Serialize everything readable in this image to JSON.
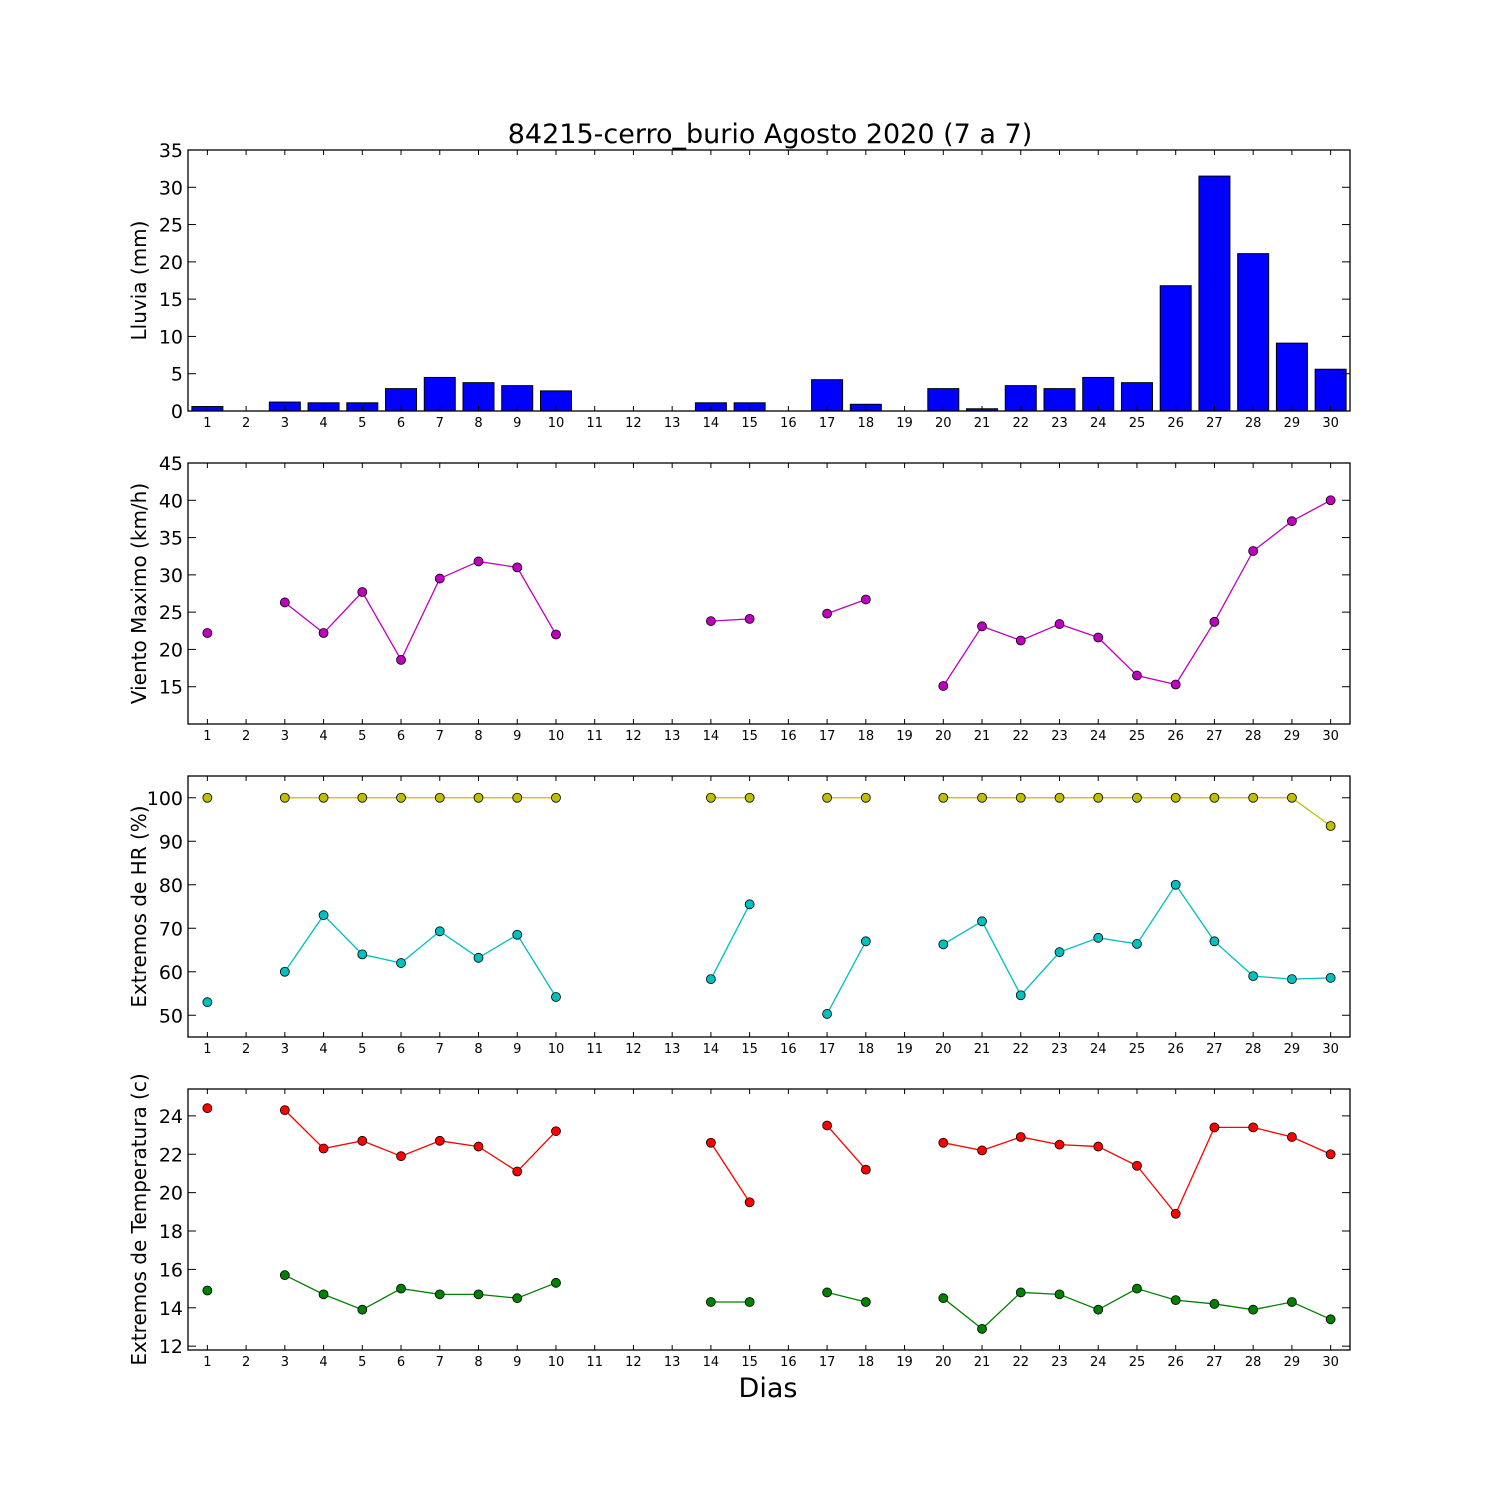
{
  "figure": {
    "title": "84215-cerro_burio Agosto 2020  (7 a 7)",
    "xlabel": "Dias"
  },
  "colors": {
    "rain": "#0000ff",
    "wind": "#bf00bf",
    "hr_max": "#bfbf00",
    "hr_min": "#00bfbf",
    "temp_max": "#ff0000",
    "temp_min": "#008000"
  },
  "chart_data": [
    {
      "type": "bar",
      "ylabel": "Lluvia (mm)",
      "x": [
        1,
        2,
        3,
        4,
        5,
        6,
        7,
        8,
        9,
        10,
        11,
        12,
        13,
        14,
        15,
        16,
        17,
        18,
        19,
        20,
        21,
        22,
        23,
        24,
        25,
        26,
        27,
        28,
        29,
        30
      ],
      "xlim": [
        0.5,
        30.5
      ],
      "ylim": [
        0,
        35
      ],
      "yticks": [
        0,
        5,
        10,
        15,
        20,
        25,
        30,
        35
      ],
      "series": [
        {
          "values": [
            0.6,
            0,
            1.2,
            1.1,
            1.1,
            3.0,
            4.5,
            3.8,
            3.4,
            2.7,
            0,
            0,
            0,
            1.1,
            1.1,
            0,
            4.2,
            0.9,
            0,
            3.0,
            0.3,
            3.4,
            3.0,
            4.5,
            3.8,
            16.8,
            31.5,
            21.1,
            9.1,
            5.6
          ]
        }
      ]
    },
    {
      "type": "line",
      "ylabel": "Viento Maximo (km/h)",
      "x": [
        1,
        2,
        3,
        4,
        5,
        6,
        7,
        8,
        9,
        10,
        11,
        12,
        13,
        14,
        15,
        16,
        17,
        18,
        19,
        20,
        21,
        22,
        23,
        24,
        25,
        26,
        27,
        28,
        29,
        30
      ],
      "xlim": [
        0.5,
        30.5
      ],
      "ylim": [
        10,
        45
      ],
      "yticks": [
        15,
        20,
        25,
        30,
        35,
        40,
        45
      ],
      "series": [
        {
          "values": [
            22.2,
            null,
            26.3,
            22.2,
            27.7,
            18.6,
            29.5,
            31.8,
            31.0,
            22.0,
            null,
            null,
            null,
            23.8,
            24.1,
            null,
            24.8,
            26.7,
            null,
            15.1,
            23.1,
            21.2,
            23.4,
            21.6,
            16.5,
            15.3,
            23.7,
            33.2,
            37.2,
            40.0
          ]
        }
      ]
    },
    {
      "type": "line",
      "ylabel": "Extremos de HR (%)",
      "x": [
        1,
        2,
        3,
        4,
        5,
        6,
        7,
        8,
        9,
        10,
        11,
        12,
        13,
        14,
        15,
        16,
        17,
        18,
        19,
        20,
        21,
        22,
        23,
        24,
        25,
        26,
        27,
        28,
        29,
        30
      ],
      "xlim": [
        0.5,
        30.5
      ],
      "ylim": [
        45,
        105
      ],
      "yticks": [
        50,
        60,
        70,
        80,
        90,
        100
      ],
      "series": [
        {
          "values": [
            100,
            null,
            100,
            100,
            100,
            100,
            100,
            100,
            100,
            100,
            null,
            null,
            null,
            100,
            100,
            null,
            100,
            100,
            null,
            100,
            100,
            100,
            100,
            100,
            100,
            100,
            100,
            100,
            100,
            93.5
          ]
        },
        {
          "values": [
            53.0,
            null,
            60.0,
            73.0,
            64.0,
            62.0,
            69.3,
            63.2,
            68.5,
            54.2,
            null,
            null,
            null,
            58.3,
            75.5,
            null,
            50.3,
            67.0,
            null,
            66.3,
            71.6,
            54.6,
            64.5,
            67.8,
            66.4,
            80.0,
            67.0,
            59.0,
            58.3,
            58.6
          ]
        }
      ]
    },
    {
      "type": "line",
      "ylabel": "Extremos de Temperatura (c)",
      "x": [
        1,
        2,
        3,
        4,
        5,
        6,
        7,
        8,
        9,
        10,
        11,
        12,
        13,
        14,
        15,
        16,
        17,
        18,
        19,
        20,
        21,
        22,
        23,
        24,
        25,
        26,
        27,
        28,
        29,
        30
      ],
      "xlim": [
        0.5,
        30.5
      ],
      "ylim": [
        11.8,
        25.4
      ],
      "yticks": [
        12,
        14,
        16,
        18,
        20,
        22,
        24
      ],
      "series": [
        {
          "values": [
            24.4,
            null,
            24.3,
            22.3,
            22.7,
            21.9,
            22.7,
            22.4,
            21.1,
            23.2,
            null,
            null,
            null,
            22.6,
            19.5,
            null,
            23.5,
            21.2,
            null,
            22.6,
            22.2,
            22.9,
            22.5,
            22.4,
            21.4,
            18.9,
            23.4,
            23.4,
            22.9,
            22.0
          ]
        },
        {
          "values": [
            14.9,
            null,
            15.7,
            14.7,
            13.9,
            15.0,
            14.7,
            14.7,
            14.5,
            15.3,
            null,
            null,
            null,
            14.3,
            14.3,
            null,
            14.8,
            14.3,
            null,
            14.5,
            12.9,
            14.8,
            14.7,
            13.9,
            15.0,
            14.4,
            14.2,
            13.9,
            14.3,
            13.4
          ]
        }
      ]
    }
  ]
}
